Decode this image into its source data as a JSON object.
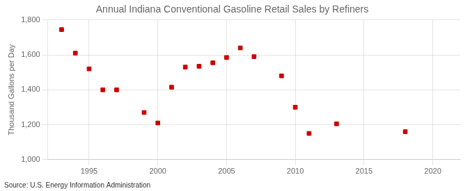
{
  "chart_data": {
    "type": "scatter",
    "title": "Annual Indiana Conventional Gasoline Retail Sales by Refiners",
    "ylabel": "Thousand Gallons per Day",
    "source": "Source: U.S. Energy Information Administration",
    "x": [
      1993,
      1994,
      1995,
      1996,
      1997,
      1999,
      2000,
      2001,
      2002,
      2003,
      2004,
      2005,
      2006,
      2007,
      2009,
      2010,
      2011,
      2013,
      2018
    ],
    "values": [
      1745,
      1610,
      1520,
      1400,
      1400,
      1270,
      1210,
      1415,
      1530,
      1535,
      1555,
      1585,
      1640,
      1590,
      1480,
      1300,
      1150,
      1205,
      1160
    ],
    "color": "#cc0000",
    "marker": "square",
    "xlim": [
      1992,
      2022
    ],
    "ylim": [
      1000,
      1800
    ],
    "xticks": [
      1995,
      2000,
      2005,
      2010,
      2015,
      2020
    ],
    "yticks": [
      {
        "value": 1000,
        "label": "1,000"
      },
      {
        "value": 1200,
        "label": "1,200"
      },
      {
        "value": 1400,
        "label": "1,400"
      },
      {
        "value": 1600,
        "label": "1,600"
      },
      {
        "value": 1800,
        "label": "1,800"
      }
    ],
    "grid": true
  }
}
